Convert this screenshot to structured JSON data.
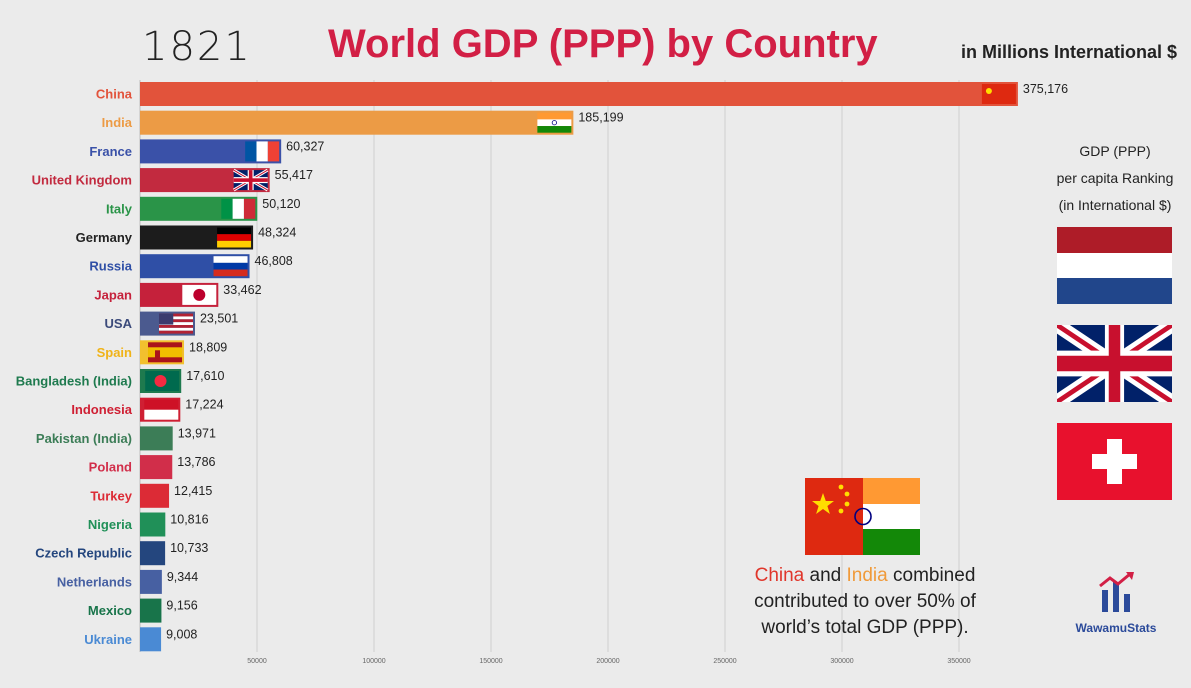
{
  "header": {
    "year": "1821",
    "title": "World GDP (PPP) by Country",
    "units": "in Millions International $"
  },
  "colors": {
    "title": "#d21f45",
    "china_word": "#e0362b",
    "india_word": "#f09a3a"
  },
  "chart_data": {
    "type": "bar",
    "orientation": "horizontal",
    "title": "World GDP (PPP) by Country",
    "subtitle": "1821",
    "unit": "in Millions International $",
    "xlim": [
      0,
      370000
    ],
    "xticks": [
      50000,
      100000,
      150000,
      200000,
      250000,
      300000,
      350000
    ],
    "xtick_labels": [
      "50000",
      "100000",
      "150000",
      "200000",
      "250000",
      "300000",
      "350000"
    ],
    "grid": true,
    "categories": [
      "China",
      "India",
      "France",
      "United Kingdom",
      "Italy",
      "Germany",
      "Russia",
      "Japan",
      "USA",
      "Spain",
      "Bangladesh (India)",
      "Indonesia",
      "Pakistan (India)",
      "Poland",
      "Turkey",
      "Nigeria",
      "Czech Republic",
      "Netherlands",
      "Mexico",
      "Ukraine"
    ],
    "values": [
      375176,
      185199,
      60327,
      55417,
      50120,
      48324,
      46808,
      33462,
      23501,
      18809,
      17610,
      17224,
      13971,
      13786,
      12415,
      10816,
      10733,
      9344,
      9156,
      9008
    ],
    "value_labels": [
      "375,176",
      "185,199",
      "60,327",
      "55,417",
      "50,120",
      "48,324",
      "46,808",
      "33,462",
      "23,501",
      "18,809",
      "17,610",
      "17,224",
      "13,971",
      "13,786",
      "12,415",
      "10,816",
      "10,733",
      "9,344",
      "9,156",
      "9,008"
    ],
    "bar_colors": [
      "#e2533b",
      "#ec9b45",
      "#3a51a8",
      "#c22a3f",
      "#2a9448",
      "#1c1c1c",
      "#2f4fa6",
      "#c5213b",
      "#4b5a8f",
      "#f2c02e",
      "#1e7a4e",
      "#cf1f33",
      "#3c7d57",
      "#d12e4a",
      "#dc2b36",
      "#209058",
      "#24467e",
      "#4760a2",
      "#18744a",
      "#4a8ad4"
    ],
    "label_colors": [
      "#e2533b",
      "#ec9b45",
      "#3a51a8",
      "#c22a3f",
      "#2a9448",
      "#222222",
      "#2f4fa6",
      "#c5213b",
      "#3b4a7a",
      "#f0b318",
      "#1e7a4e",
      "#cf1f33",
      "#3c7d57",
      "#d12e4a",
      "#dc2b36",
      "#209058",
      "#24467e",
      "#4760a2",
      "#18744a",
      "#4a8ad4"
    ],
    "flags": [
      "china-flag",
      "india-flag",
      "france-flag",
      "uk-flag",
      "italy-flag",
      "germany-flag",
      "russia-flag",
      "japan-flag",
      "usa-flag",
      "spain-flag",
      "bangladesh-flag",
      "indonesia-flag",
      "",
      "",
      "",
      "",
      "",
      "",
      "",
      ""
    ]
  },
  "sidebar": {
    "title_line1": "GDP (PPP)",
    "title_line2": "per capita Ranking",
    "title_line3": "(in International $)",
    "flags": [
      "netherlands-flag",
      "uk-flag",
      "switzerland-flag"
    ]
  },
  "note": {
    "china": "China",
    "and": " and ",
    "india": "India",
    "line1_rest": " combined",
    "line2": "contributed to over 50% of",
    "line3": "world’s total GDP (PPP)."
  },
  "logo": {
    "name": "WawamuStats",
    "icon": "bar-chart-logo-icon"
  }
}
